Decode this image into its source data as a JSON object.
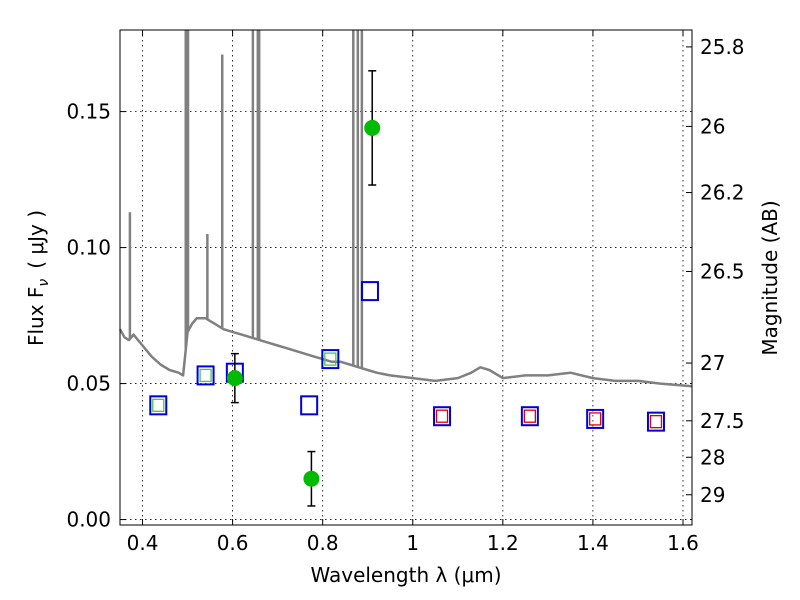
{
  "chart_data": {
    "type": "scatter",
    "xlabel": "Wavelength  λ (μm)",
    "ylabel": "Flux  F",
    "ylabel_sub": "ν",
    "ylabel_units": "( μJy )",
    "y2label": "Magnitude (AB)",
    "xlim": [
      0.35,
      1.62
    ],
    "ylim": [
      -0.002,
      0.18
    ],
    "x_ticks": [
      0.4,
      0.6,
      0.8,
      1.0,
      1.2,
      1.4,
      1.6
    ],
    "x_tick_labels": [
      "0.4",
      "0.6",
      "0.8",
      "1",
      "1.2",
      "1.4",
      "1.6"
    ],
    "y_ticks": [
      0.0,
      0.05,
      0.1,
      0.15
    ],
    "y_tick_labels": [
      "0.00",
      "0.05",
      "0.10",
      "0.15"
    ],
    "mag_ticks": [
      25.8,
      26.0,
      26.2,
      26.5,
      27.0,
      27.5,
      28.0,
      29.0
    ],
    "mag_tick_labels": [
      "25.8",
      "26",
      "26.2",
      "26.5",
      "27",
      "27.5",
      "28",
      "29"
    ],
    "grid": true,
    "colors": {
      "spectrum": "#808080",
      "observed": "#00bb00",
      "model_box": "#0000dd",
      "green_box": "#44cc44",
      "red_box": "#dd0000",
      "errorbar": "#000000"
    },
    "series": [
      {
        "name": "Model spectrum",
        "kind": "line",
        "x": [
          0.35,
          0.36,
          0.37,
          0.38,
          0.4,
          0.42,
          0.44,
          0.46,
          0.48,
          0.49,
          0.5,
          0.51,
          0.52,
          0.54,
          0.56,
          0.58,
          0.6,
          0.62,
          0.64,
          0.66,
          0.68,
          0.7,
          0.72,
          0.74,
          0.76,
          0.78,
          0.8,
          0.82,
          0.84,
          0.86,
          0.88,
          0.9,
          0.92,
          0.95,
          1.0,
          1.05,
          1.1,
          1.13,
          1.15,
          1.17,
          1.2,
          1.25,
          1.3,
          1.35,
          1.4,
          1.45,
          1.5,
          1.55,
          1.62
        ],
        "y": [
          0.07,
          0.067,
          0.066,
          0.068,
          0.064,
          0.06,
          0.057,
          0.055,
          0.054,
          0.053,
          0.069,
          0.072,
          0.074,
          0.074,
          0.072,
          0.07,
          0.069,
          0.068,
          0.067,
          0.066,
          0.065,
          0.064,
          0.063,
          0.062,
          0.061,
          0.06,
          0.059,
          0.058,
          0.058,
          0.057,
          0.056,
          0.055,
          0.054,
          0.053,
          0.052,
          0.051,
          0.052,
          0.054,
          0.056,
          0.055,
          0.052,
          0.053,
          0.053,
          0.054,
          0.052,
          0.051,
          0.051,
          0.05,
          0.049
        ]
      },
      {
        "name": "Emission lines",
        "kind": "spikes",
        "x": [
          0.372,
          0.496,
          0.501,
          0.544,
          0.577,
          0.645,
          0.656,
          0.659,
          0.868,
          0.878,
          0.887
        ],
        "y": [
          0.113,
          0.18,
          0.18,
          0.105,
          0.171,
          0.18,
          0.18,
          0.18,
          0.18,
          0.18,
          0.18
        ]
      },
      {
        "name": "Observed photometry",
        "kind": "points",
        "x": [
          0.605,
          0.775,
          0.91
        ],
        "y": [
          0.052,
          0.015,
          0.144
        ],
        "err": [
          0.009,
          0.01,
          0.021
        ]
      },
      {
        "name": "Model photometry (blue)",
        "kind": "boxes",
        "x": [
          0.435,
          0.54,
          0.605,
          0.77,
          0.817,
          0.905,
          1.065,
          1.26,
          1.405,
          1.54
        ],
        "y": [
          0.042,
          0.053,
          0.054,
          0.042,
          0.059,
          0.084,
          0.038,
          0.038,
          0.037,
          0.036
        ]
      },
      {
        "name": "Model photometry (green)",
        "kind": "small_boxes",
        "x": [
          0.435,
          0.54,
          0.817
        ],
        "y": [
          0.042,
          0.053,
          0.059
        ]
      },
      {
        "name": "Model photometry (red)",
        "kind": "small_boxes",
        "x": [
          1.065,
          1.26,
          1.405,
          1.54
        ],
        "y": [
          0.038,
          0.038,
          0.037,
          0.036
        ]
      }
    ]
  }
}
